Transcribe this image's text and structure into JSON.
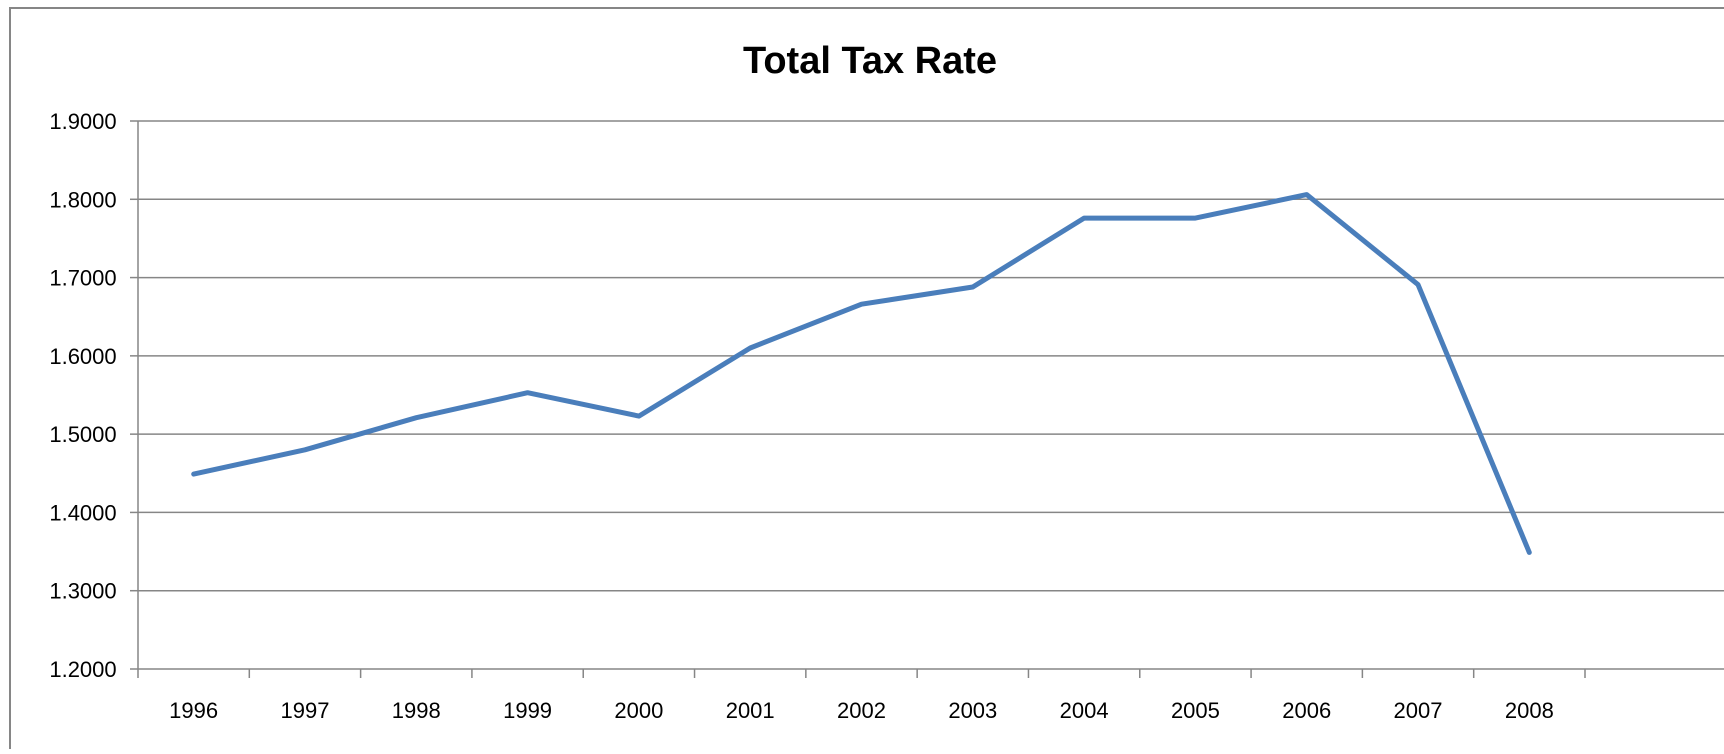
{
  "chart_data": {
    "type": "line",
    "title": "Total Tax Rate",
    "xlabel": "",
    "ylabel": "",
    "categories": [
      "1996",
      "1997",
      "1998",
      "1999",
      "2000",
      "2001",
      "2002",
      "2003",
      "2004",
      "2005",
      "2006",
      "2007",
      "2008"
    ],
    "series": [
      {
        "values": [
          1.449,
          1.48,
          1.521,
          1.553,
          1.523,
          1.61,
          1.666,
          1.688,
          1.776,
          1.776,
          1.806,
          1.691,
          1.349
        ]
      }
    ],
    "ylim": [
      1.2,
      1.9
    ],
    "yticks": [
      "1.2000",
      "1.3000",
      "1.4000",
      "1.5000",
      "1.6000",
      "1.7000",
      "1.8000",
      "1.9000"
    ],
    "grid": true,
    "legend": "none",
    "colors": {
      "line": "#4A7EBB",
      "grid": "#868686",
      "border": "#868686"
    }
  }
}
